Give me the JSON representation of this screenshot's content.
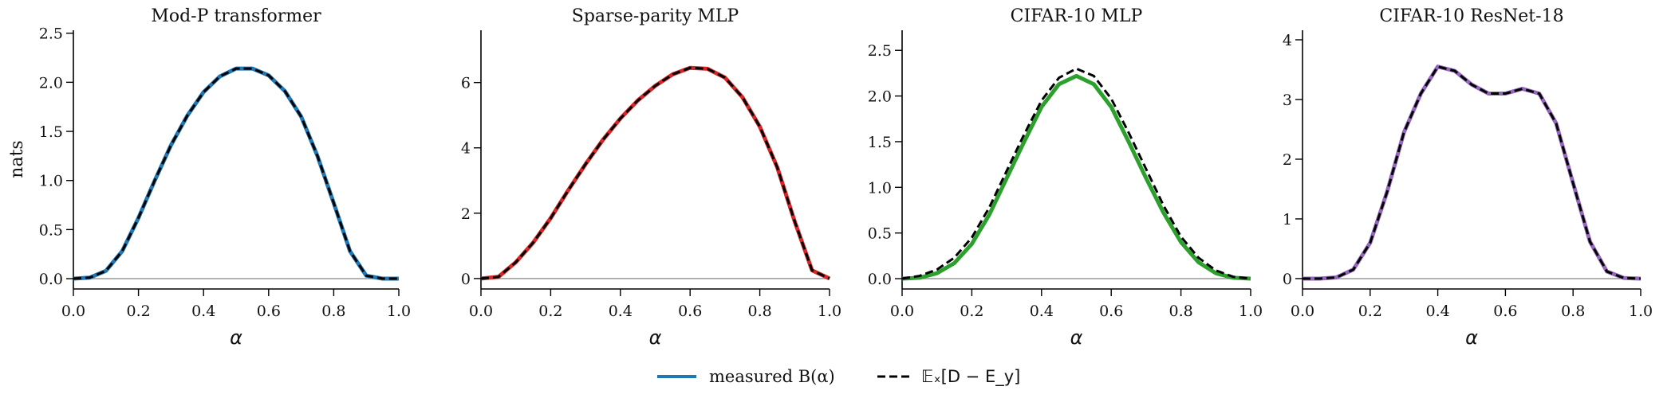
{
  "ylabel": "nats",
  "legend": {
    "placement": "bottom-center",
    "items": [
      {
        "label": "measured B(α)",
        "style": "solid",
        "color": "#1f77b4"
      },
      {
        "label": "𝔼ₓ[D − E_y]",
        "style": "dashed",
        "color": "#000000"
      }
    ]
  },
  "chart_data": [
    {
      "type": "line",
      "title": "Mod-P transformer",
      "xlabel": "α",
      "ylabel": "nats",
      "xlim": [
        0,
        1
      ],
      "ylim": [
        -0.105,
        2.53
      ],
      "xticks": [
        "0.0",
        "0.2",
        "0.4",
        "0.6",
        "0.8",
        "1.0"
      ],
      "yticks": [
        "0.0",
        "0.5",
        "1.0",
        "1.5",
        "2.0",
        "2.5"
      ],
      "color": "#1f77b4",
      "x": [
        0,
        0.05,
        0.1,
        0.15,
        0.2,
        0.25,
        0.3,
        0.35,
        0.4,
        0.45,
        0.5,
        0.55,
        0.6,
        0.65,
        0.7,
        0.75,
        0.8,
        0.85,
        0.9,
        0.95,
        1.0
      ],
      "series": [
        {
          "name": "measured B(α)",
          "values": [
            0,
            0.01,
            0.08,
            0.28,
            0.62,
            1.0,
            1.36,
            1.66,
            1.9,
            2.06,
            2.14,
            2.14,
            2.07,
            1.91,
            1.65,
            1.25,
            0.77,
            0.28,
            0.03,
            0.0,
            0.0
          ]
        },
        {
          "name": "𝔼ₓ[D − E_y]",
          "values": [
            0,
            0.01,
            0.08,
            0.28,
            0.62,
            1.0,
            1.36,
            1.66,
            1.9,
            2.06,
            2.14,
            2.14,
            2.07,
            1.91,
            1.65,
            1.25,
            0.77,
            0.28,
            0.03,
            0.0,
            0.0
          ]
        }
      ]
    },
    {
      "type": "line",
      "title": "Sparse-parity MLP",
      "xlabel": "α",
      "xlim": [
        0,
        1
      ],
      "ylim": [
        -0.32,
        7.6
      ],
      "xticks": [
        "0.0",
        "0.2",
        "0.4",
        "0.6",
        "0.8",
        "1.0"
      ],
      "yticks": [
        "0",
        "2",
        "4",
        "6"
      ],
      "color": "#d62728",
      "x": [
        0,
        0.05,
        0.1,
        0.15,
        0.2,
        0.25,
        0.3,
        0.35,
        0.4,
        0.45,
        0.5,
        0.55,
        0.6,
        0.65,
        0.7,
        0.75,
        0.8,
        0.85,
        0.9,
        0.95,
        1.0
      ],
      "series": [
        {
          "name": "measured B(α)",
          "values": [
            0,
            0.05,
            0.5,
            1.1,
            1.85,
            2.7,
            3.5,
            4.25,
            4.9,
            5.45,
            5.9,
            6.25,
            6.45,
            6.42,
            6.15,
            5.55,
            4.65,
            3.4,
            1.75,
            0.25,
            0.0
          ]
        },
        {
          "name": "𝔼ₓ[D − E_y]",
          "values": [
            0,
            0.05,
            0.5,
            1.1,
            1.85,
            2.7,
            3.5,
            4.25,
            4.9,
            5.45,
            5.9,
            6.25,
            6.45,
            6.42,
            6.15,
            5.55,
            4.65,
            3.4,
            1.75,
            0.25,
            0.0
          ]
        }
      ]
    },
    {
      "type": "line",
      "title": "CIFAR-10 MLP",
      "xlabel": "α",
      "xlim": [
        0,
        1
      ],
      "ylim": [
        -0.113,
        2.72
      ],
      "xticks": [
        "0.0",
        "0.2",
        "0.4",
        "0.6",
        "0.8",
        "1.0"
      ],
      "yticks": [
        "0.0",
        "0.5",
        "1.0",
        "1.5",
        "2.0",
        "2.5"
      ],
      "color": "#2ca02c",
      "x": [
        0,
        0.05,
        0.1,
        0.15,
        0.2,
        0.25,
        0.3,
        0.35,
        0.4,
        0.45,
        0.5,
        0.55,
        0.6,
        0.65,
        0.7,
        0.75,
        0.8,
        0.85,
        0.9,
        0.95,
        1.0
      ],
      "series": [
        {
          "name": "measured B(α)",
          "values": [
            0,
            0.01,
            0.06,
            0.17,
            0.38,
            0.7,
            1.1,
            1.5,
            1.88,
            2.13,
            2.22,
            2.13,
            1.88,
            1.5,
            1.1,
            0.72,
            0.4,
            0.18,
            0.06,
            0.01,
            0
          ]
        },
        {
          "name": "𝔼ₓ[D − E_y]",
          "values": [
            0,
            0.03,
            0.1,
            0.23,
            0.45,
            0.78,
            1.18,
            1.58,
            1.95,
            2.2,
            2.3,
            2.22,
            1.97,
            1.6,
            1.2,
            0.8,
            0.46,
            0.23,
            0.09,
            0.02,
            0
          ]
        }
      ]
    },
    {
      "type": "line",
      "title": "CIFAR-10 ResNet-18",
      "xlabel": "α",
      "xlim": [
        0,
        1
      ],
      "ylim": [
        -0.174,
        4.16
      ],
      "xticks": [
        "0.0",
        "0.2",
        "0.4",
        "0.6",
        "0.8",
        "1.0"
      ],
      "yticks": [
        "0",
        "1",
        "2",
        "3",
        "4"
      ],
      "color": "#9467bd",
      "x": [
        0,
        0.05,
        0.1,
        0.15,
        0.2,
        0.25,
        0.3,
        0.35,
        0.4,
        0.45,
        0.5,
        0.55,
        0.6,
        0.65,
        0.7,
        0.75,
        0.8,
        0.85,
        0.9,
        0.95,
        1.0
      ],
      "series": [
        {
          "name": "measured B(α)",
          "values": [
            0,
            0,
            0.02,
            0.15,
            0.6,
            1.45,
            2.45,
            3.1,
            3.55,
            3.48,
            3.25,
            3.1,
            3.1,
            3.18,
            3.1,
            2.6,
            1.6,
            0.62,
            0.12,
            0.01,
            0
          ]
        },
        {
          "name": "𝔼ₓ[D − E_y]",
          "values": [
            0,
            0,
            0.02,
            0.15,
            0.6,
            1.45,
            2.45,
            3.1,
            3.55,
            3.48,
            3.25,
            3.1,
            3.1,
            3.18,
            3.1,
            2.6,
            1.6,
            0.62,
            0.12,
            0.01,
            0
          ]
        }
      ]
    }
  ]
}
